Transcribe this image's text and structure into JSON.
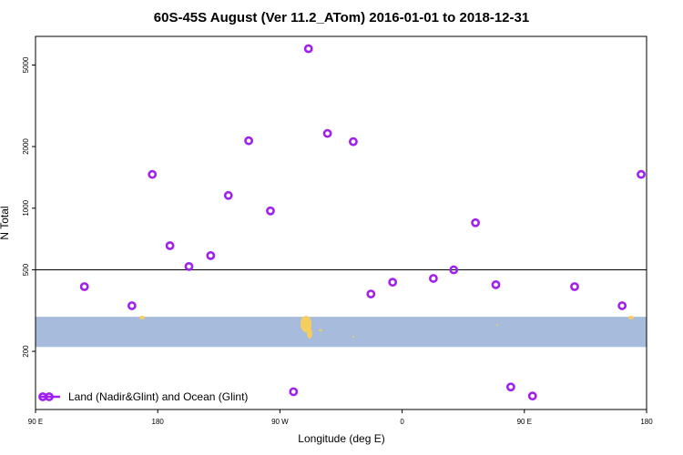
{
  "chart_data": {
    "type": "scatter",
    "title": "60S-45S August (Ver 11.2_ATom)   2016-01-01 to 2018-12-31",
    "x_label": "Longitude (deg E)",
    "y_label": "N Total",
    "log_y": true,
    "xlim": [
      90,
      540
    ],
    "ylim": [
      104,
      6900
    ],
    "xticks": [
      {
        "value": 90,
        "label": "90 E"
      },
      180,
      {
        "value": 270,
        "label": "90 W"
      },
      {
        "value": 360,
        "label": "0"
      },
      {
        "value": 450,
        "label": "90 E"
      },
      {
        "value": 540,
        "label": "180"
      }
    ],
    "yticks": [
      200,
      500,
      1000,
      2000,
      5000
    ],
    "reference_line": 500,
    "band": [
      210,
      295
    ],
    "band_color": "#a7bcdc",
    "legend_position": "bottom-left",
    "series": [
      {
        "name": "Land (Nadir&Glint) and Ocean (Glint)",
        "color": "#a020f0",
        "x": [
          126,
          161,
          176,
          189,
          203,
          219,
          232,
          247,
          263,
          280,
          291,
          305,
          324,
          337,
          353,
          383,
          398,
          414,
          429,
          440,
          456,
          487,
          522,
          536
        ],
        "values": [
          414,
          334,
          1462,
          656,
          519,
          587,
          1154,
          2134,
          970,
          127,
          6010,
          2317,
          2113,
          381,
          435,
          454,
          500,
          849,
          423,
          134,
          121,
          414,
          334,
          1462
        ]
      }
    ]
  }
}
